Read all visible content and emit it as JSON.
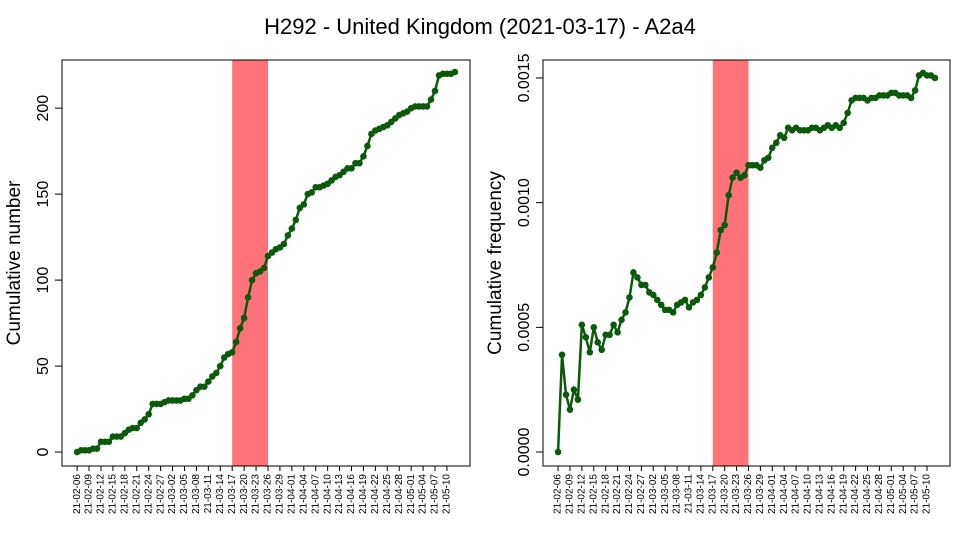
{
  "title": "H292 - United Kingdom (2021-03-17) - A2a4",
  "chart_data": [
    {
      "type": "line",
      "ylabel": "Cumulative number",
      "categories": [
        "21-02-06",
        null,
        null,
        "21-02-09",
        null,
        null,
        "21-02-12",
        null,
        null,
        "21-02-15",
        null,
        null,
        "21-02-18",
        null,
        null,
        "21-02-21",
        null,
        null,
        "21-02-24",
        null,
        null,
        "21-02-27",
        null,
        null,
        "21-03-02",
        null,
        null,
        "21-03-05",
        null,
        null,
        "21-03-08",
        null,
        null,
        "21-03-11",
        null,
        null,
        "21-03-14",
        null,
        null,
        "21-03-17",
        null,
        null,
        "21-03-20",
        null,
        null,
        "21-03-23",
        null,
        null,
        "21-03-26",
        null,
        null,
        "21-03-29",
        null,
        null,
        "21-04-01",
        null,
        null,
        "21-04-04",
        null,
        null,
        "21-04-07",
        null,
        null,
        "21-04-10",
        null,
        null,
        "21-04-13",
        null,
        null,
        "21-04-16",
        null,
        null,
        "21-04-19",
        null,
        null,
        "21-04-22",
        null,
        null,
        "21-04-25",
        null,
        null,
        "21-04-28",
        null,
        null,
        "21-05-01",
        null,
        null,
        "21-05-04",
        null,
        null,
        "21-05-07",
        null,
        null,
        "21-05-10",
        null,
        null
      ],
      "series": [
        {
          "color": "#0b5a0b",
          "values": [
            0,
            1,
            1,
            1,
            2,
            2,
            6,
            6,
            6,
            9,
            9,
            9,
            11,
            13,
            14,
            14,
            17,
            19,
            22,
            28,
            28,
            28,
            29,
            30,
            30,
            30,
            30,
            31,
            31,
            33,
            36,
            38,
            38,
            41,
            44,
            46,
            50,
            55,
            57,
            58,
            64,
            72,
            78,
            90,
            100,
            104,
            105,
            107,
            114,
            116,
            118,
            119,
            121,
            126,
            130,
            135,
            142,
            144,
            150,
            151,
            154,
            154,
            155,
            156,
            158,
            160,
            161,
            163,
            165,
            165,
            168,
            168,
            172,
            178,
            185,
            187,
            188,
            189,
            190,
            192,
            194,
            196,
            197,
            198,
            200,
            201,
            201,
            201,
            201,
            205,
            210,
            219,
            220,
            220,
            220,
            221
          ]
        }
      ],
      "highlight": [
        39,
        48
      ],
      "highlight_color": "#ff7378",
      "ylim": [
        -8.1,
        228
      ],
      "yticks": [
        0,
        50,
        100,
        150,
        200
      ]
    },
    {
      "type": "line",
      "ylabel": "Cumulative frequency",
      "categories": [
        "21-02-06",
        null,
        null,
        "21-02-09",
        null,
        null,
        "21-02-12",
        null,
        null,
        "21-02-15",
        null,
        null,
        "21-02-18",
        null,
        null,
        "21-02-21",
        null,
        null,
        "21-02-24",
        null,
        null,
        "21-02-27",
        null,
        null,
        "21-03-02",
        null,
        null,
        "21-03-05",
        null,
        null,
        "21-03-08",
        null,
        null,
        "21-03-11",
        null,
        null,
        "21-03-14",
        null,
        null,
        "21-03-17",
        null,
        null,
        "21-03-20",
        null,
        null,
        "21-03-23",
        null,
        null,
        "21-03-26",
        null,
        null,
        "21-03-29",
        null,
        null,
        "21-04-01",
        null,
        null,
        "21-04-04",
        null,
        null,
        "21-04-07",
        null,
        null,
        "21-04-10",
        null,
        null,
        "21-04-13",
        null,
        null,
        "21-04-16",
        null,
        null,
        "21-04-19",
        null,
        null,
        "21-04-22",
        null,
        null,
        "21-04-25",
        null,
        null,
        "21-04-28",
        null,
        null,
        "21-05-01",
        null,
        null,
        "21-05-04",
        null,
        null,
        "21-05-07",
        null,
        null,
        "21-05-10",
        null,
        null
      ],
      "series": [
        {
          "color": "#0b5a0b",
          "values": [
            0,
            0.00039,
            0.00023,
            0.00017,
            0.00025,
            0.00021,
            0.00051,
            0.00046,
            0.0004,
            0.0005,
            0.00044,
            0.00041,
            0.00047,
            0.00047,
            0.00051,
            0.00048,
            0.00053,
            0.00056,
            0.00062,
            0.00072,
            0.0007,
            0.00067,
            0.00067,
            0.00064,
            0.00063,
            0.00061,
            0.00059,
            0.00057,
            0.00057,
            0.00056,
            0.00059,
            0.0006,
            0.00061,
            0.00058,
            0.0006,
            0.00061,
            0.00063,
            0.00066,
            0.0007,
            0.00074,
            0.0008,
            0.00089,
            0.00091,
            0.00103,
            0.0011,
            0.00112,
            0.0011,
            0.00111,
            0.00115,
            0.00115,
            0.00115,
            0.00114,
            0.00117,
            0.00118,
            0.00122,
            0.00124,
            0.00127,
            0.00126,
            0.0013,
            0.00129,
            0.0013,
            0.00129,
            0.00129,
            0.00129,
            0.0013,
            0.0013,
            0.00129,
            0.0013,
            0.00131,
            0.0013,
            0.00131,
            0.0013,
            0.00132,
            0.00136,
            0.00141,
            0.00142,
            0.00142,
            0.00142,
            0.00141,
            0.00142,
            0.00142,
            0.00143,
            0.00143,
            0.00143,
            0.00144,
            0.00144,
            0.00143,
            0.00143,
            0.00143,
            0.00142,
            0.00145,
            0.00151,
            0.00152,
            0.00151,
            0.00151,
            0.0015
          ]
        }
      ],
      "highlight": [
        39,
        48
      ],
      "highlight_color": "#ff7378",
      "ylim": [
        -5.61e-05,
        0.001572
      ],
      "yticks": [
        {
          "value": 0,
          "label": "0.0000"
        },
        {
          "value": 0.0005,
          "label": "0.0005"
        },
        {
          "value": 0.001,
          "label": "0.0010"
        },
        {
          "value": 0.0015,
          "label": "0.0015"
        }
      ]
    }
  ]
}
